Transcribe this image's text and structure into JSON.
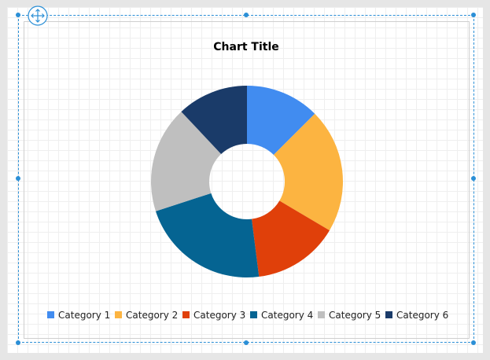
{
  "chart_data": {
    "type": "pie",
    "title": "Chart Title",
    "donut": true,
    "legend_position": "bottom",
    "categories": [
      "Category 1",
      "Category 2",
      "Category 3",
      "Category 4",
      "Category 5",
      "Category 6"
    ],
    "values": [
      12.5,
      21.0,
      14.5,
      22.0,
      18.0,
      12.0
    ],
    "colors": [
      "#418CF0",
      "#FCB441",
      "#E0400A",
      "#056492",
      "#BFBFBF",
      "#1A3B69"
    ]
  },
  "icons": {
    "move_handle": "move-arrows-icon"
  }
}
